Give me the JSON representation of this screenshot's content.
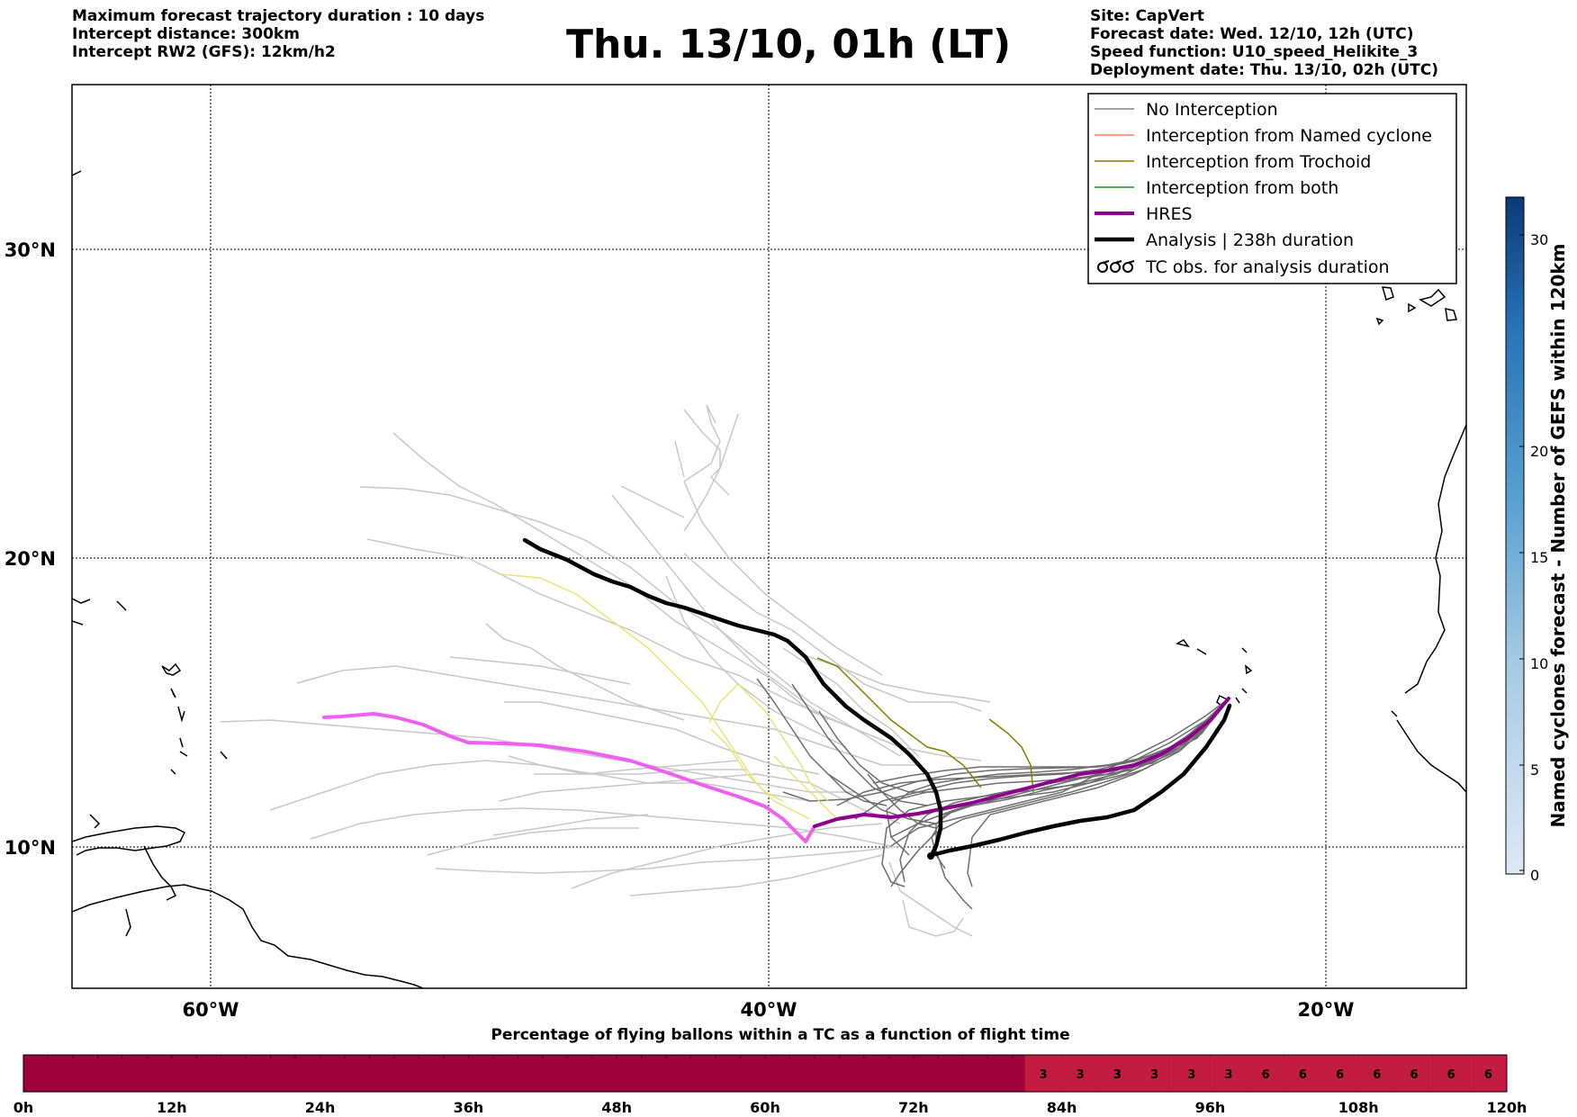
{
  "header": {
    "left_lines": [
      "Maximum forecast trajectory duration : 10 days",
      "Intercept distance: 300km",
      "Intercept RW2 (GFS):  12km/h2"
    ],
    "title": "Thu. 13/10, 01h (LT)",
    "right_lines": [
      "Site: CapVert",
      "Forecast date: Wed. 12/10, 12h (UTC)",
      "Speed function: U10_speed_Helikite_3",
      "Deployment date: Thu. 13/10, 02h (UTC)"
    ]
  },
  "map": {
    "lat_ticks": [
      "30°N",
      "20°N",
      "10°N"
    ],
    "lon_ticks": [
      "60°W",
      "40°W",
      "20°W"
    ]
  },
  "legend": {
    "items": [
      {
        "label": "No Interception",
        "color": "#808080"
      },
      {
        "label": "Interception from Named cyclone",
        "color": "#ff7f50"
      },
      {
        "label": "Interception from Trochoid",
        "color": "#808000"
      },
      {
        "label": "Interception from both",
        "color": "#228b22"
      },
      {
        "label": "HRES",
        "color": "#8b008b"
      },
      {
        "label": "Analysis | 238h duration",
        "color": "#000000"
      },
      {
        "label": "TC obs. for analysis duration",
        "color": "#000000",
        "icon": "tc-symbol-icon"
      }
    ]
  },
  "colorbar": {
    "label": "Named cyclones forecast - Number of GEFS within 120km",
    "ticks": [
      "30",
      "20",
      "15",
      "10",
      "5",
      "0"
    ]
  },
  "bottom_bar": {
    "title": "Percentage of flying ballons within a TC as a function of flight time",
    "time_labels": [
      "0h",
      "12h",
      "24h",
      "36h",
      "48h",
      "60h",
      "72h",
      "84h",
      "96h",
      "108h",
      "120h"
    ],
    "cell_values": [
      "3",
      "3",
      "3",
      "3",
      "3",
      "3",
      "6",
      "6",
      "6",
      "6",
      "6",
      "6",
      "6"
    ],
    "colors": {
      "base": "#9e0039",
      "light": "#c41c40"
    }
  }
}
